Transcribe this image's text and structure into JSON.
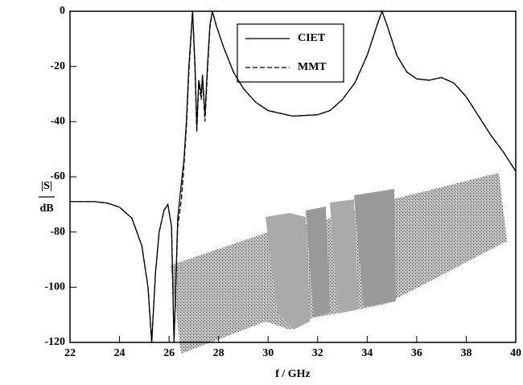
{
  "chart_data": {
    "type": "line",
    "xlabel": "f / GHz",
    "ylabel": [
      "|S|",
      "dB"
    ],
    "xlim": [
      22,
      40
    ],
    "xticks": [
      22,
      24,
      26,
      28,
      30,
      32,
      34,
      36,
      38,
      40
    ],
    "ylim": [
      -120,
      0
    ],
    "yticks": [
      -120,
      -100,
      -80,
      -60,
      -40,
      -20,
      0
    ],
    "legend": "top-center",
    "x": [
      22,
      23,
      23.5,
      24,
      24.5,
      24.9,
      25.15,
      25.3,
      25.45,
      25.6,
      25.8,
      25.95,
      26.1,
      26.2,
      26.35,
      26.5,
      26.6,
      26.7,
      26.8,
      26.95,
      27.05,
      27.12,
      27.2,
      27.3,
      27.35,
      27.45,
      27.55,
      27.65,
      27.75,
      27.9,
      28.2,
      28.6,
      29,
      29.5,
      30,
      31,
      32,
      32.5,
      33,
      33.5,
      34,
      34.4,
      34.6,
      34.8,
      35.2,
      35.6,
      36,
      36.5,
      37,
      37.5,
      38,
      38.5,
      39,
      39.5,
      40
    ],
    "series": [
      {
        "name": "CIET",
        "color": "#000000",
        "linestyle": "solid",
        "values": [
          -69,
          -69,
          -69.5,
          -71,
          -75,
          -85,
          -100,
          -120,
          -95,
          -80,
          -72,
          -70,
          -78,
          -120,
          -75,
          -62,
          -54,
          -40,
          -20,
          0,
          -20,
          -42,
          -25,
          -30,
          -23,
          -38,
          -20,
          -5,
          0,
          -5,
          -13,
          -22,
          -28,
          -33,
          -36,
          -38,
          -37.5,
          -36,
          -32,
          -26,
          -16,
          -5,
          0,
          -5,
          -16,
          -22,
          -24.5,
          -25,
          -24,
          -26,
          -31,
          -38,
          -45,
          -51,
          -58
        ]
      },
      {
        "name": "MMT",
        "color": "#000000",
        "linestyle": "dashed",
        "values": [
          -69,
          -69,
          -69.5,
          -71,
          -75,
          -85,
          -100,
          -120,
          -95,
          -80,
          -72,
          -70,
          -78,
          -120,
          -78,
          -68,
          -56,
          -42,
          -22,
          0,
          -22,
          -44,
          -26,
          -32,
          -24,
          -40,
          -22,
          -6,
          0,
          -5,
          -13,
          -22,
          -28,
          -33,
          -36,
          -38,
          -37.5,
          -36,
          -32,
          -26,
          -16,
          -5,
          0,
          -5,
          -16,
          -22,
          -24.5,
          -25,
          -24,
          -26,
          -31,
          -38,
          -45,
          -51,
          -58
        ]
      }
    ]
  }
}
